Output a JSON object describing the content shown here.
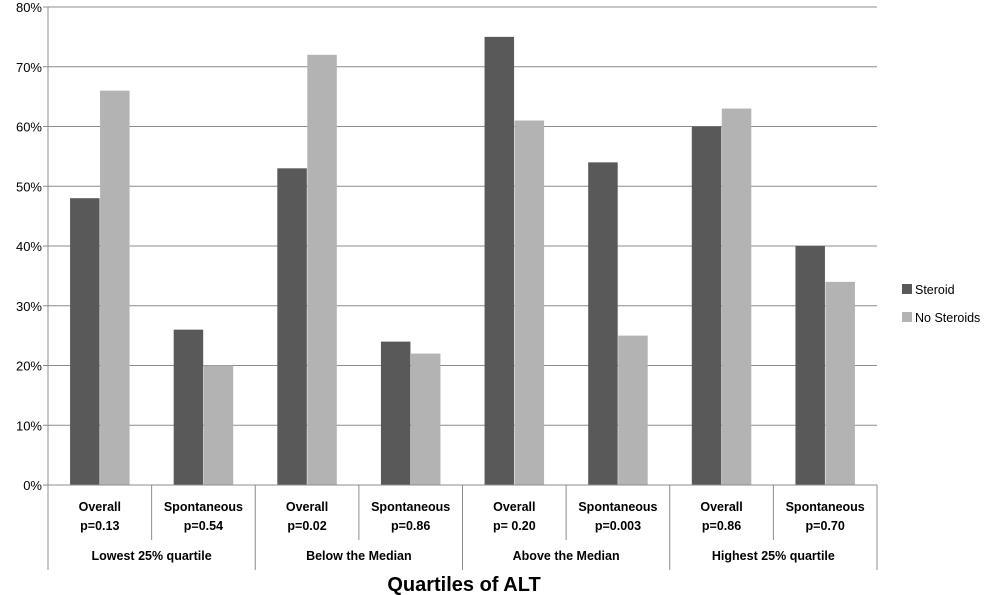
{
  "chart_data": {
    "type": "bar",
    "categories": [
      {
        "line1": "Overall",
        "line2": "p=0.13"
      },
      {
        "line1": "Spontaneous",
        "line2": "p=0.54"
      },
      {
        "line1": "Overall",
        "line2": "p=0.02"
      },
      {
        "line1": "Spontaneous",
        "line2": "p=0.86"
      },
      {
        "line1": "Overall",
        "line2": "p= 0.20"
      },
      {
        "line1": "Spontaneous",
        "line2": "p=0.003"
      },
      {
        "line1": "Overall",
        "line2": "p=0.86"
      },
      {
        "line1": "Spontaneous",
        "line2": "p=0.70"
      }
    ],
    "groups": [
      "Lowest 25% quartile",
      "Below the Median",
      "Above the Median",
      "Highest 25% quartile"
    ],
    "series": [
      {
        "name": "Steroid",
        "color": "#595959",
        "values": [
          48,
          26,
          53,
          24,
          75,
          54,
          60,
          40
        ]
      },
      {
        "name": "No Steroids",
        "color": "#b3b3b3",
        "values": [
          66,
          20,
          72,
          22,
          61,
          25,
          63,
          34
        ]
      }
    ],
    "xlabel": "Quartiles of ALT",
    "ylabel": "",
    "ylim": [
      0,
      80
    ],
    "yticks": [
      "0%",
      "10%",
      "20%",
      "30%",
      "40%",
      "50%",
      "60%",
      "70%",
      "80%"
    ],
    "grid": true,
    "legend": "right"
  }
}
